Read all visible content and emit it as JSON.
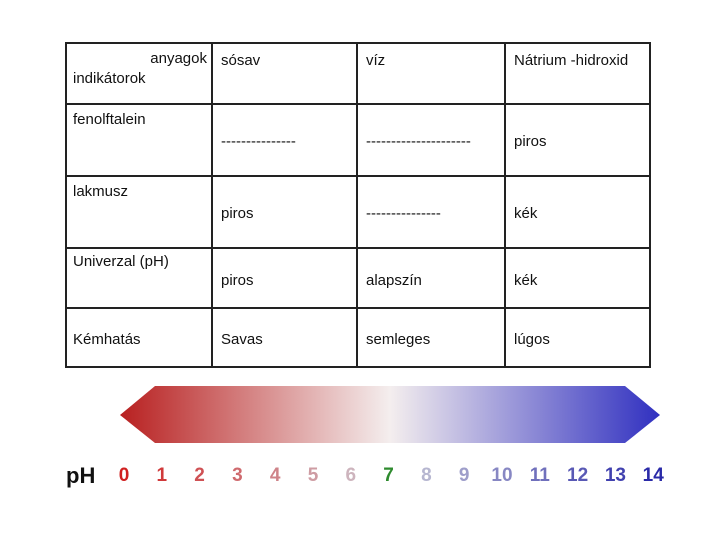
{
  "table": {
    "header_top": "anyagok",
    "header_bottom": "indikátorok",
    "columns": [
      "sósav",
      "víz",
      "Nátrium -hidroxid"
    ],
    "rows": [
      {
        "label": "fenolftalein",
        "cells": [
          "---------------",
          "---------------------",
          "piros"
        ]
      },
      {
        "label": "lakmusz",
        "cells": [
          "piros",
          "---------------",
          "kék"
        ]
      },
      {
        "label": "Univerzal (pH)",
        "cells": [
          "piros",
          "alapszín",
          "kék"
        ]
      },
      {
        "label": "Kémhatás",
        "cells": [
          "Savas",
          "semleges",
          "lúgos"
        ]
      }
    ]
  },
  "ph_scale": {
    "label": "pH",
    "numbers": [
      "0",
      "1",
      "2",
      "3",
      "4",
      "5",
      "6",
      "7",
      "8",
      "9",
      "10",
      "11",
      "12",
      "13",
      "14"
    ],
    "colors": {
      "acid": "#b82020",
      "neutral": "#f4eeee",
      "base": "#3030c0",
      "num_7": "#2e8b2e",
      "num_low": "#d02020",
      "num_high": "#2a2aa8"
    }
  }
}
